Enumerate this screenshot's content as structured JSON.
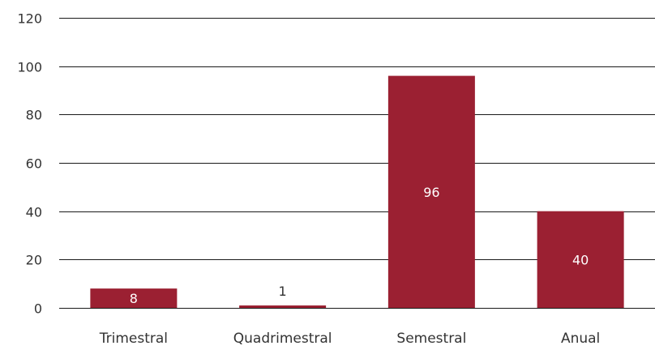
{
  "chart_data": {
    "type": "bar",
    "title": "",
    "xlabel": "",
    "ylabel": "",
    "categories": [
      "Trimestral",
      "Quadrimestral",
      "Semestral",
      "Anual"
    ],
    "values": [
      8,
      1,
      96,
      40
    ],
    "data_labels": [
      "8",
      "1",
      "96",
      "40"
    ],
    "ylim": [
      0,
      120
    ],
    "yticks": [
      0,
      20,
      40,
      60,
      80,
      100,
      120
    ],
    "ytick_labels": [
      "0",
      "20",
      "40",
      "60",
      "80",
      "100",
      "120"
    ],
    "grid": true,
    "legend": "none",
    "colors": {
      "bar": "#9B2032",
      "label_inside": "#ffffff",
      "label_outside": "#333333",
      "grid": "#1a1a1a",
      "text": "#333333"
    }
  }
}
